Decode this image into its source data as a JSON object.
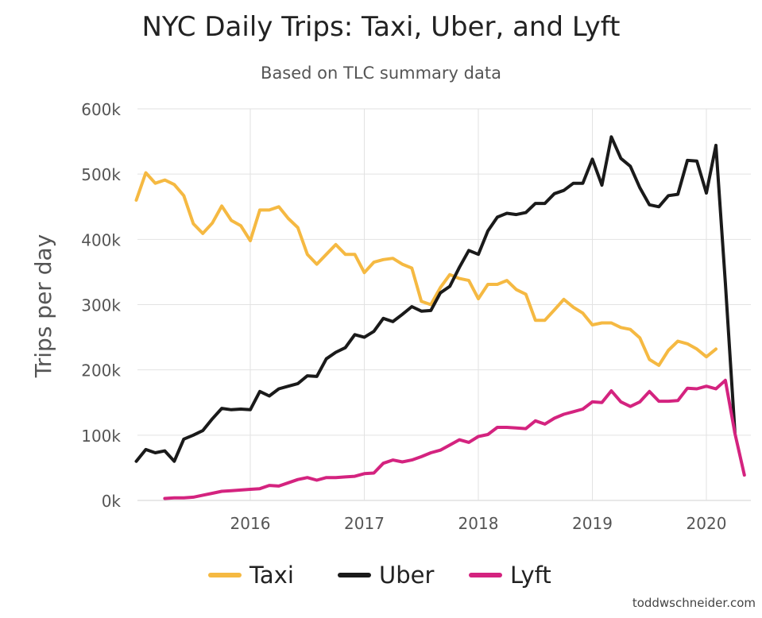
{
  "chart_data": {
    "type": "line",
    "title": "NYC Daily Trips: Taxi, Uber, and Lyft",
    "subtitle": "Based on TLC summary data",
    "ylabel": "Trips per day",
    "xlabel": "",
    "ylim": [
      0,
      600000
    ],
    "xlim": [
      "2015-01",
      "2020-06"
    ],
    "x_ticks": [
      "2016",
      "2017",
      "2018",
      "2019",
      "2020"
    ],
    "y_ticks": [
      "0k",
      "100k",
      "200k",
      "300k",
      "400k",
      "500k",
      "600k"
    ],
    "grid": true,
    "legend_position": "bottom",
    "series": [
      {
        "name": "Taxi",
        "color": "#f5b942",
        "start": "2015-01",
        "values": [
          460000,
          502000,
          486000,
          491000,
          484000,
          467000,
          424000,
          409000,
          425000,
          451000,
          429000,
          421000,
          398000,
          445000,
          445000,
          450000,
          432000,
          418000,
          377000,
          362000,
          377000,
          392000,
          377000,
          377000,
          349000,
          365000,
          369000,
          371000,
          362000,
          356000,
          305000,
          300000,
          326000,
          346000,
          340000,
          337000,
          309000,
          331000,
          331000,
          337000,
          323000,
          316000,
          276000,
          276000,
          292000,
          308000,
          296000,
          287000,
          269000,
          272000,
          272000,
          265000,
          262000,
          249000,
          216000,
          207000,
          230000,
          244000,
          240000,
          232000,
          220000,
          232000
        ]
      },
      {
        "name": "Uber",
        "color": "#1a1a1a",
        "start": "2015-01",
        "values": [
          60000,
          78000,
          73000,
          76000,
          60000,
          94000,
          100000,
          107000,
          125000,
          141000,
          139000,
          140000,
          139000,
          167000,
          160000,
          171000,
          175000,
          179000,
          191000,
          190000,
          217000,
          227000,
          234000,
          254000,
          250000,
          259000,
          279000,
          274000,
          285000,
          297000,
          290000,
          291000,
          318000,
          328000,
          357000,
          383000,
          377000,
          413000,
          434000,
          440000,
          438000,
          441000,
          455000,
          455000,
          470000,
          475000,
          486000,
          486000,
          523000,
          483000,
          557000,
          524000,
          512000,
          479000,
          453000,
          450000,
          467000,
          469000,
          521000,
          520000,
          471000,
          544000,
          333000,
          104000
        ]
      },
      {
        "name": "Lyft",
        "color": "#d4237f",
        "start": "2015-04",
        "values": [
          3000,
          4000,
          4000,
          5000,
          8000,
          11000,
          14000,
          15000,
          16000,
          17000,
          18000,
          23000,
          22000,
          27000,
          32000,
          35000,
          31000,
          35000,
          35000,
          36000,
          37000,
          41000,
          42000,
          57000,
          62000,
          59000,
          62000,
          67000,
          73000,
          77000,
          85000,
          93000,
          89000,
          98000,
          101000,
          112000,
          112000,
          111000,
          110000,
          122000,
          117000,
          126000,
          132000,
          136000,
          140000,
          151000,
          150000,
          168000,
          151000,
          144000,
          151000,
          167000,
          152000,
          152000,
          153000,
          172000,
          171000,
          175000,
          171000,
          184000,
          103000,
          39000
        ]
      }
    ]
  },
  "source_label": "toddwschneider.com"
}
